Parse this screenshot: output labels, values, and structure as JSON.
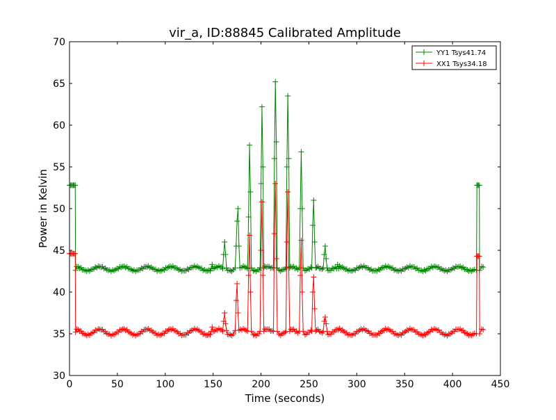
{
  "chart_data": {
    "type": "line",
    "title": "vir_a, ID:88845 Calibrated Amplitude",
    "xlabel": "Time (seconds)",
    "ylabel": "Power in Kelvin",
    "xlim": [
      0,
      450
    ],
    "ylim": [
      30,
      70
    ],
    "xticks": [
      0,
      50,
      100,
      150,
      200,
      250,
      300,
      350,
      400,
      450
    ],
    "yticks": [
      30,
      35,
      40,
      45,
      50,
      55,
      60,
      65,
      70
    ],
    "grid": false,
    "legend_position": "top-right",
    "series": [
      {
        "name": "YY1 Tsys41.74",
        "color": "#008000",
        "marker": "+",
        "baseline": {
          "x_start": 6,
          "x_end": 432,
          "step": 1.5,
          "mean": 42.8,
          "amplitude": 0.25,
          "period": 25
        },
        "points": [
          [
            0,
            52.8
          ],
          [
            1,
            52.8
          ],
          [
            2,
            52.8
          ],
          [
            3,
            52.8
          ],
          [
            4,
            52.8
          ],
          [
            5,
            52.8
          ],
          [
            6,
            52.8
          ],
          [
            6.3,
            42.6
          ],
          [
            148,
            42.8
          ],
          [
            149,
            43.3
          ],
          [
            150,
            42.8
          ],
          [
            160,
            42.8
          ],
          [
            161,
            44.5
          ],
          [
            162,
            46.0
          ],
          [
            163,
            44.5
          ],
          [
            164,
            42.9
          ],
          [
            173,
            42.9
          ],
          [
            174,
            45.5
          ],
          [
            175,
            48.5
          ],
          [
            176,
            50.0
          ],
          [
            177,
            45.5
          ],
          [
            178,
            42.9
          ],
          [
            186,
            42.8
          ],
          [
            187,
            49.0
          ],
          [
            188,
            57.6
          ],
          [
            189,
            52.0
          ],
          [
            190,
            42.9
          ],
          [
            199,
            42.9
          ],
          [
            200,
            53.0
          ],
          [
            201,
            62.2
          ],
          [
            202,
            55.0
          ],
          [
            203,
            42.9
          ],
          [
            213,
            42.9
          ],
          [
            214,
            56.0
          ],
          [
            215,
            65.2
          ],
          [
            216,
            58.0
          ],
          [
            217,
            42.9
          ],
          [
            226,
            42.9
          ],
          [
            227,
            55.0
          ],
          [
            228,
            63.5
          ],
          [
            229,
            56.0
          ],
          [
            230,
            42.9
          ],
          [
            240,
            42.9
          ],
          [
            241,
            50.0
          ],
          [
            242,
            56.8
          ],
          [
            243,
            50.0
          ],
          [
            244,
            42.9
          ],
          [
            253,
            42.9
          ],
          [
            254,
            48.0
          ],
          [
            255,
            51.0
          ],
          [
            256,
            46.0
          ],
          [
            257,
            42.9
          ],
          [
            265,
            42.9
          ],
          [
            266,
            44.5
          ],
          [
            267,
            45.5
          ],
          [
            268,
            44.0
          ],
          [
            269,
            42.9
          ],
          [
            279,
            42.8
          ],
          [
            280,
            43.3
          ],
          [
            281,
            42.8
          ],
          [
            425,
            42.6
          ],
          [
            425.5,
            52.8
          ],
          [
            426,
            52.8
          ],
          [
            427,
            52.8
          ],
          [
            428,
            52.8
          ],
          [
            428.3,
            42.6
          ]
        ]
      },
      {
        "name": "XX1 Tsys34.18",
        "color": "#ff0000",
        "marker": "+",
        "baseline": {
          "x_start": 6,
          "x_end": 432,
          "step": 1.5,
          "mean": 35.2,
          "amplitude": 0.35,
          "period": 25
        },
        "points": [
          [
            0,
            44.6
          ],
          [
            1,
            44.6
          ],
          [
            2,
            44.6
          ],
          [
            3,
            44.6
          ],
          [
            4,
            44.6
          ],
          [
            5,
            44.6
          ],
          [
            6,
            44.6
          ],
          [
            6.3,
            35.2
          ],
          [
            148,
            35.3
          ],
          [
            149,
            35.8
          ],
          [
            150,
            35.3
          ],
          [
            160,
            35.3
          ],
          [
            161,
            36.5
          ],
          [
            162,
            37.5
          ],
          [
            163,
            36.2
          ],
          [
            164,
            35.4
          ],
          [
            173,
            35.4
          ],
          [
            174,
            39.0
          ],
          [
            175,
            41.0
          ],
          [
            176,
            37.5
          ],
          [
            177,
            35.4
          ],
          [
            186,
            35.3
          ],
          [
            187,
            42.0
          ],
          [
            188,
            46.8
          ],
          [
            189,
            40.0
          ],
          [
            190,
            35.3
          ],
          [
            199,
            35.3
          ],
          [
            200,
            45.0
          ],
          [
            201,
            50.8
          ],
          [
            202,
            42.0
          ],
          [
            203,
            35.3
          ],
          [
            213,
            35.3
          ],
          [
            214,
            47.0
          ],
          [
            215,
            53.0
          ],
          [
            216,
            44.0
          ],
          [
            217,
            35.3
          ],
          [
            226,
            35.3
          ],
          [
            227,
            46.0
          ],
          [
            228,
            52.0
          ],
          [
            229,
            43.0
          ],
          [
            230,
            35.3
          ],
          [
            240,
            35.3
          ],
          [
            241,
            42.0
          ],
          [
            242,
            46.2
          ],
          [
            243,
            40.0
          ],
          [
            244,
            35.3
          ],
          [
            253,
            35.3
          ],
          [
            254,
            40.0
          ],
          [
            255,
            41.8
          ],
          [
            256,
            38.0
          ],
          [
            257,
            35.3
          ],
          [
            265,
            35.3
          ],
          [
            266,
            36.5
          ],
          [
            267,
            37.0
          ],
          [
            268,
            36.2
          ],
          [
            269,
            35.3
          ],
          [
            425,
            35.0
          ],
          [
            425.5,
            44.3
          ],
          [
            426,
            44.3
          ],
          [
            427,
            44.3
          ],
          [
            428,
            44.3
          ],
          [
            428.3,
            35.0
          ]
        ]
      }
    ]
  }
}
